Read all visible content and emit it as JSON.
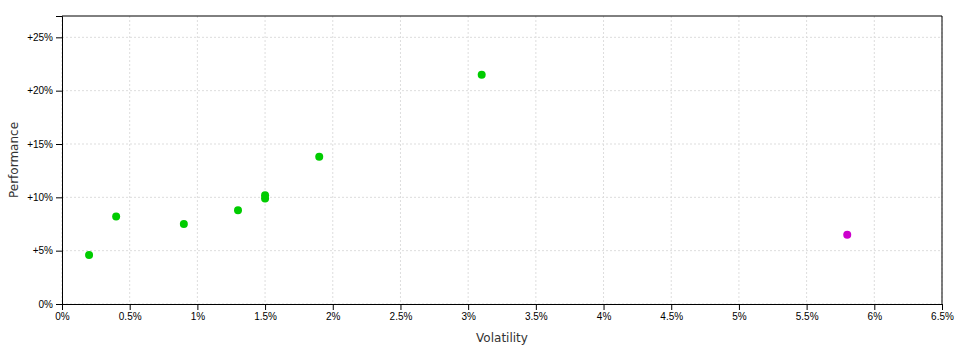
{
  "chart_data": {
    "type": "scatter",
    "xlabel": "Volatility",
    "ylabel": "Performance",
    "series": [
      {
        "color": "#00cc00",
        "x": [
          0.002,
          0.004,
          0.009,
          0.013,
          0.015,
          0.015,
          0.019,
          0.031
        ],
        "values": [
          0.046,
          0.082,
          0.075,
          0.088,
          0.102,
          0.099,
          0.138,
          0.215
        ]
      },
      {
        "color": "#cc00cc",
        "x": [
          0.058
        ],
        "values": [
          0.065
        ]
      }
    ],
    "xlim": [
      0.0,
      0.065
    ],
    "ylim": [
      0.0,
      0.27
    ],
    "xticks": [
      {
        "value": 0.0,
        "label": "0%"
      },
      {
        "value": 0.005,
        "label": "0.5%"
      },
      {
        "value": 0.01,
        "label": "1%"
      },
      {
        "value": 0.015,
        "label": "1.5%"
      },
      {
        "value": 0.02,
        "label": "2%"
      },
      {
        "value": 0.025,
        "label": "2.5%"
      },
      {
        "value": 0.03,
        "label": "3%"
      },
      {
        "value": 0.035,
        "label": "3.5%"
      },
      {
        "value": 0.04,
        "label": "4%"
      },
      {
        "value": 0.045,
        "label": "4.5%"
      },
      {
        "value": 0.05,
        "label": "5%"
      },
      {
        "value": 0.055,
        "label": "5.5%"
      },
      {
        "value": 0.06,
        "label": "6%"
      },
      {
        "value": 0.065,
        "label": "6.5%"
      }
    ],
    "yticks": [
      {
        "value": 0.0,
        "label": "0%"
      },
      {
        "value": 0.05,
        "label": "+5%"
      },
      {
        "value": 0.1,
        "label": "+10%"
      },
      {
        "value": 0.15,
        "label": "+15%"
      },
      {
        "value": 0.2,
        "label": "+20%"
      },
      {
        "value": 0.25,
        "label": "+25%"
      }
    ],
    "grid": true
  }
}
